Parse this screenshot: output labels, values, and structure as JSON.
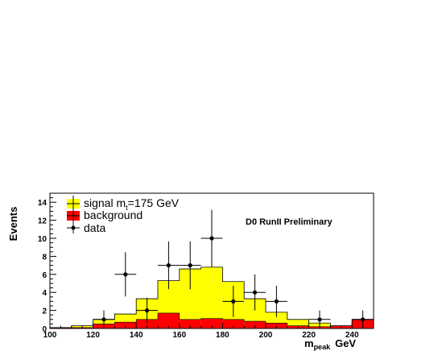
{
  "chart_data": {
    "type": "bar",
    "histogram": true,
    "stacked": true,
    "x_bins": [
      100,
      110,
      120,
      130,
      140,
      150,
      160,
      170,
      180,
      190,
      200,
      210,
      220,
      230,
      240,
      250
    ],
    "xlim": [
      100,
      250
    ],
    "ylim": [
      0,
      15
    ],
    "x_ticks": [
      100,
      120,
      140,
      160,
      180,
      200,
      220,
      240
    ],
    "y_ticks": [
      0,
      2,
      4,
      6,
      8,
      10,
      12,
      14
    ],
    "xlabel_main": "m",
    "xlabel_sub": "peak",
    "xlabel_unit": "GeV",
    "ylabel": "Events",
    "annotation": "D0 RunII Preliminary",
    "series": [
      {
        "name": "background",
        "color": "#ff0000",
        "values": [
          0.1,
          0.1,
          0.5,
          0.7,
          1.0,
          1.7,
          1.0,
          1.1,
          1.0,
          0.8,
          0.6,
          0.3,
          0.2,
          0.3,
          1.0
        ]
      },
      {
        "name": "signal",
        "color": "#ffff00",
        "values": [
          0.0,
          0.2,
          0.5,
          0.9,
          2.3,
          3.6,
          5.6,
          5.7,
          4.2,
          2.5,
          1.2,
          0.7,
          0.4,
          0.0,
          0.0
        ]
      }
    ],
    "data_points": {
      "name": "data",
      "x": [
        125,
        135,
        145,
        155,
        165,
        175,
        185,
        195,
        205,
        225,
        245
      ],
      "y": [
        1,
        6,
        2,
        7,
        7,
        10,
        3,
        4,
        3,
        1,
        1
      ],
      "yerr": [
        1.0,
        2.45,
        1.41,
        2.65,
        2.65,
        3.16,
        1.73,
        2.0,
        1.73,
        1.0,
        1.0
      ]
    },
    "legend": {
      "position": "top-left",
      "signal_prefix": "signal m",
      "signal_sub": "t",
      "signal_suffix": "=175 GeV",
      "background_label": "background",
      "data_label": "data"
    }
  }
}
